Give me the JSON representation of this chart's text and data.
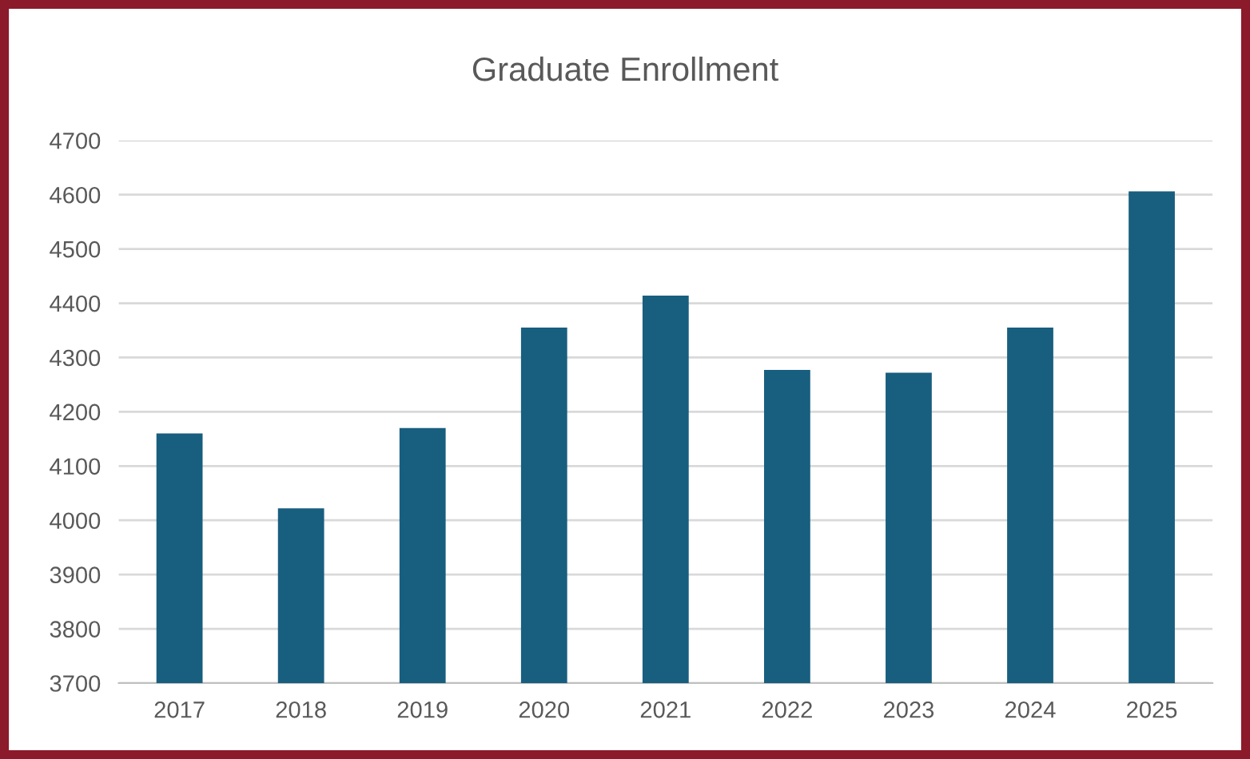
{
  "chart_data": {
    "type": "bar",
    "title": "Graduate Enrollment",
    "categories": [
      "2017",
      "2018",
      "2019",
      "2020",
      "2021",
      "2022",
      "2023",
      "2024",
      "2025"
    ],
    "values": [
      4160,
      4022,
      4170,
      4355,
      4414,
      4277,
      4272,
      4355,
      4606
    ],
    "color": "#185e7f",
    "ylim": [
      3700,
      4700
    ],
    "yticks": [
      3700,
      3800,
      3900,
      4000,
      4100,
      4200,
      4300,
      4400,
      4500,
      4600,
      4700
    ],
    "grid": "y"
  }
}
